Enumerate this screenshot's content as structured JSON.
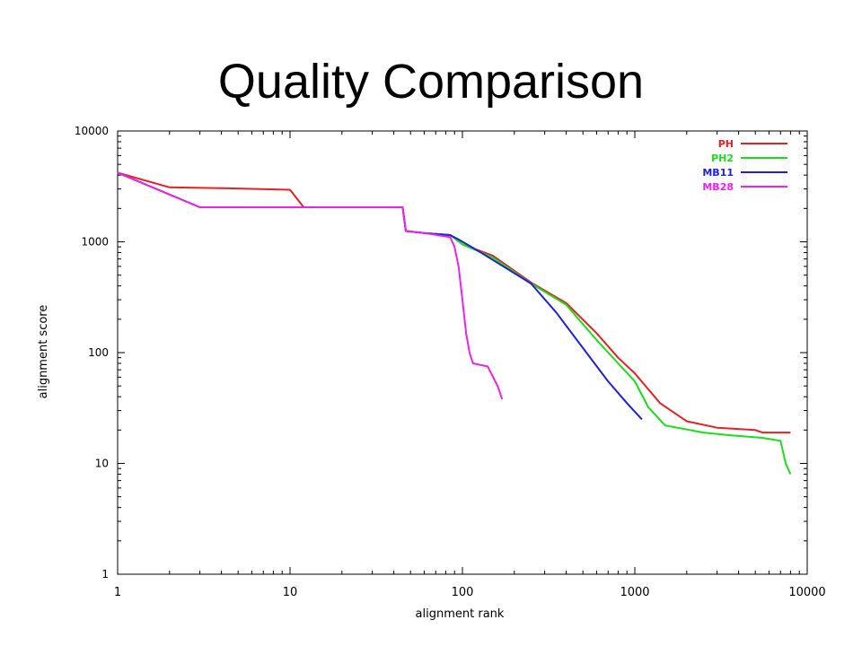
{
  "slide": {
    "title": "Quality Comparison"
  },
  "chart_data": {
    "type": "line",
    "title": "",
    "xlabel": "alignment rank",
    "ylabel": "alignment score",
    "xscale": "log",
    "yscale": "log",
    "xlim": [
      1,
      10000
    ],
    "ylim": [
      1,
      10000
    ],
    "x_ticks": [
      1,
      10,
      100,
      1000,
      10000
    ],
    "y_ticks": [
      1,
      10,
      100,
      1000,
      10000
    ],
    "x_tick_labels": [
      "1",
      "10",
      "100",
      "1000",
      "10000"
    ],
    "y_tick_labels": [
      "1",
      "10",
      "100",
      "1000",
      "10000"
    ],
    "grid": false,
    "legend_position": "top-right",
    "series": [
      {
        "name": "PH",
        "color": "#e82020",
        "points": [
          [
            1,
            4200
          ],
          [
            2,
            3100
          ],
          [
            4,
            3050
          ],
          [
            10,
            2950
          ],
          [
            12,
            2050
          ],
          [
            45,
            2050
          ],
          [
            47,
            1250
          ],
          [
            60,
            1200
          ],
          [
            85,
            1150
          ],
          [
            100,
            950
          ],
          [
            150,
            750
          ],
          [
            250,
            430
          ],
          [
            400,
            280
          ],
          [
            600,
            150
          ],
          [
            800,
            90
          ],
          [
            1000,
            65
          ],
          [
            1400,
            35
          ],
          [
            2000,
            24
          ],
          [
            3000,
            21
          ],
          [
            5000,
            20
          ],
          [
            5500,
            19
          ],
          [
            8000,
            19
          ]
        ]
      },
      {
        "name": "PH2",
        "color": "#18e018",
        "points": [
          [
            1,
            4200
          ],
          [
            3,
            2050
          ],
          [
            45,
            2050
          ],
          [
            47,
            1250
          ],
          [
            60,
            1200
          ],
          [
            85,
            1150
          ],
          [
            100,
            950
          ],
          [
            150,
            720
          ],
          [
            250,
            420
          ],
          [
            400,
            270
          ],
          [
            600,
            130
          ],
          [
            800,
            80
          ],
          [
            1000,
            55
          ],
          [
            1200,
            32
          ],
          [
            1500,
            22
          ],
          [
            2500,
            19
          ],
          [
            3500,
            18
          ],
          [
            5500,
            17
          ],
          [
            7000,
            16
          ],
          [
            7500,
            10
          ],
          [
            8000,
            8
          ]
        ]
      },
      {
        "name": "MB11",
        "color": "#2020d8",
        "points": [
          [
            1,
            4200
          ],
          [
            3,
            2050
          ],
          [
            45,
            2050
          ],
          [
            47,
            1250
          ],
          [
            60,
            1200
          ],
          [
            85,
            1150
          ],
          [
            95,
            1050
          ],
          [
            120,
            850
          ],
          [
            250,
            420
          ],
          [
            350,
            230
          ],
          [
            500,
            110
          ],
          [
            700,
            55
          ],
          [
            900,
            35
          ],
          [
            1100,
            25
          ]
        ]
      },
      {
        "name": "MB28",
        "color": "#f020f0",
        "points": [
          [
            1,
            4200
          ],
          [
            3,
            2050
          ],
          [
            45,
            2050
          ],
          [
            47,
            1250
          ],
          [
            60,
            1200
          ],
          [
            85,
            1100
          ],
          [
            90,
            900
          ],
          [
            95,
            600
          ],
          [
            100,
            300
          ],
          [
            105,
            150
          ],
          [
            110,
            100
          ],
          [
            115,
            80
          ],
          [
            140,
            75
          ],
          [
            160,
            50
          ],
          [
            170,
            38
          ]
        ]
      }
    ]
  }
}
